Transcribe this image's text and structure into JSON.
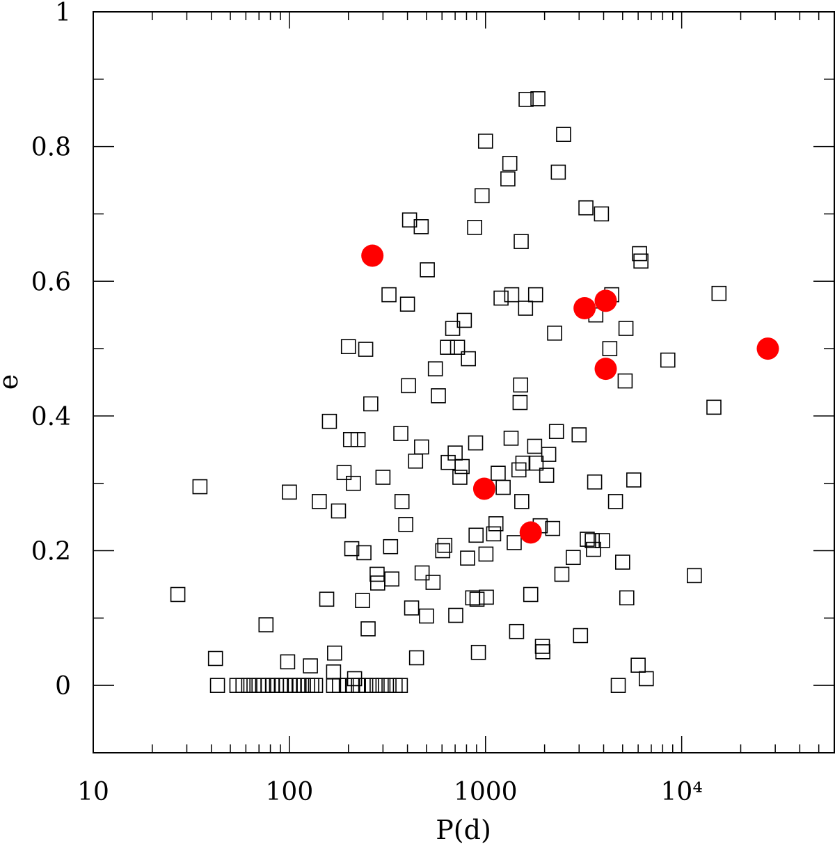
{
  "chart_data": {
    "type": "scatter",
    "title": "",
    "xlabel": "P(d)",
    "ylabel": "e",
    "x_scale": "log",
    "xlim": [
      10,
      60000
    ],
    "ylim": [
      -0.1,
      1.0
    ],
    "grid": false,
    "x_ticks": [
      {
        "value": 10,
        "label": "10"
      },
      {
        "value": 100,
        "label": "100"
      },
      {
        "value": 1000,
        "label": "1000"
      },
      {
        "value": 10000,
        "label": "10⁴"
      }
    ],
    "y_ticks": [
      {
        "value": 0,
        "label": "0"
      },
      {
        "value": 0.2,
        "label": "0.2"
      },
      {
        "value": 0.4,
        "label": "0.4"
      },
      {
        "value": 0.6,
        "label": "0.6"
      },
      {
        "value": 0.8,
        "label": "0.8"
      },
      {
        "value": 1,
        "label": "1"
      }
    ],
    "series": [
      {
        "marker": "open-square",
        "color": "#000000",
        "points": [
          [
            27,
            0.135
          ],
          [
            35,
            0.295
          ],
          [
            42,
            0.04
          ],
          [
            43,
            0
          ],
          [
            54,
            0
          ],
          [
            58,
            0
          ],
          [
            62,
            0
          ],
          [
            66,
            0
          ],
          [
            70,
            0
          ],
          [
            74,
            0
          ],
          [
            78,
            0
          ],
          [
            82,
            0
          ],
          [
            86,
            0
          ],
          [
            91,
            0
          ],
          [
            96,
            0
          ],
          [
            101,
            0
          ],
          [
            106,
            0
          ],
          [
            112,
            0
          ],
          [
            118,
            0
          ],
          [
            124,
            0
          ],
          [
            130,
            0
          ],
          [
            136,
            0
          ],
          [
            168,
            0
          ],
          [
            180,
            0
          ],
          [
            195,
            0
          ],
          [
            210,
            0
          ],
          [
            225,
            0
          ],
          [
            245,
            0
          ],
          [
            262,
            0
          ],
          [
            280,
            0
          ],
          [
            300,
            0
          ],
          [
            322,
            0
          ],
          [
            346,
            0
          ],
          [
            368,
            0
          ],
          [
            76,
            0.09
          ],
          [
            98,
            0.035
          ],
          [
            100,
            0.287
          ],
          [
            128,
            0.029
          ],
          [
            142,
            0.273
          ],
          [
            155,
            0.128
          ],
          [
            160,
            0.392
          ],
          [
            168,
            0.02
          ],
          [
            170,
            0.048
          ],
          [
            178,
            0.259
          ],
          [
            190,
            0.316
          ],
          [
            200,
            0.503
          ],
          [
            205,
            0.365
          ],
          [
            208,
            0.203
          ],
          [
            212,
            0.3
          ],
          [
            215,
            0.01
          ],
          [
            224,
            0.365
          ],
          [
            236,
            0.126
          ],
          [
            240,
            0.197
          ],
          [
            245,
            0.499
          ],
          [
            252,
            0.084
          ],
          [
            260,
            0.418
          ],
          [
            280,
            0.165
          ],
          [
            282,
            0.152
          ],
          [
            300,
            0.309
          ],
          [
            322,
            0.58
          ],
          [
            328,
            0.206
          ],
          [
            333,
            0.158
          ],
          [
            370,
            0.374
          ],
          [
            375,
            0.273
          ],
          [
            392,
            0.239
          ],
          [
            400,
            0.566
          ],
          [
            405,
            0.445
          ],
          [
            410,
            0.691
          ],
          [
            420,
            0.115
          ],
          [
            440,
            0.333
          ],
          [
            445,
            0.041
          ],
          [
            470,
            0.681
          ],
          [
            472,
            0.354
          ],
          [
            475,
            0.167
          ],
          [
            500,
            0.103
          ],
          [
            505,
            0.617
          ],
          [
            540,
            0.153
          ],
          [
            555,
            0.47
          ],
          [
            575,
            0.43
          ],
          [
            605,
            0.2
          ],
          [
            620,
            0.208
          ],
          [
            640,
            0.502
          ],
          [
            645,
            0.331
          ],
          [
            680,
            0.53
          ],
          [
            700,
            0.345
          ],
          [
            705,
            0.104
          ],
          [
            720,
            0.502
          ],
          [
            740,
            0.309
          ],
          [
            760,
            0.325
          ],
          [
            780,
            0.542
          ],
          [
            810,
            0.189
          ],
          [
            818,
            0.485
          ],
          [
            860,
            0.13
          ],
          [
            880,
            0.68
          ],
          [
            890,
            0.36
          ],
          [
            895,
            0.223
          ],
          [
            905,
            0.128
          ],
          [
            920,
            0.049
          ],
          [
            960,
            0.727
          ],
          [
            1000,
            0.808
          ],
          [
            1005,
            0.195
          ],
          [
            1010,
            0.131
          ],
          [
            1100,
            0.225
          ],
          [
            1130,
            0.24
          ],
          [
            1160,
            0.315
          ],
          [
            1200,
            0.575
          ],
          [
            1230,
            0.294
          ],
          [
            1300,
            0.752
          ],
          [
            1330,
            0.775
          ],
          [
            1350,
            0.367
          ],
          [
            1360,
            0.58
          ],
          [
            1400,
            0.212
          ],
          [
            1440,
            0.08
          ],
          [
            1480,
            0.32
          ],
          [
            1500,
            0.42
          ],
          [
            1510,
            0.446
          ],
          [
            1520,
            0.659
          ],
          [
            1530,
            0.273
          ],
          [
            1550,
            0.33
          ],
          [
            1600,
            0.56
          ],
          [
            1610,
            0.87
          ],
          [
            1700,
            0.135
          ],
          [
            1780,
            0.355
          ],
          [
            1800,
            0.58
          ],
          [
            1810,
            0.33
          ],
          [
            1850,
            0.871
          ],
          [
            1900,
            0.237
          ],
          [
            1950,
            0.058
          ],
          [
            1960,
            0.05
          ],
          [
            2050,
            0.312
          ],
          [
            2100,
            0.343
          ],
          [
            2200,
            0.233
          ],
          [
            2250,
            0.523
          ],
          [
            2300,
            0.377
          ],
          [
            2350,
            0.762
          ],
          [
            2450,
            0.165
          ],
          [
            2500,
            0.818
          ],
          [
            2800,
            0.19
          ],
          [
            3000,
            0.372
          ],
          [
            3050,
            0.074
          ],
          [
            3250,
            0.709
          ],
          [
            3300,
            0.217
          ],
          [
            3500,
            0.215
          ],
          [
            3550,
            0.202
          ],
          [
            3600,
            0.302
          ],
          [
            3650,
            0.55
          ],
          [
            3900,
            0.7
          ],
          [
            3950,
            0.215
          ],
          [
            4300,
            0.5
          ],
          [
            4400,
            0.58
          ],
          [
            4600,
            0.273
          ],
          [
            4750,
            0
          ],
          [
            5000,
            0.183
          ],
          [
            5150,
            0.452
          ],
          [
            5200,
            0.53
          ],
          [
            5250,
            0.13
          ],
          [
            5700,
            0.305
          ],
          [
            6000,
            0.03
          ],
          [
            6100,
            0.641
          ],
          [
            6200,
            0.63
          ],
          [
            6600,
            0.01
          ],
          [
            8500,
            0.483
          ],
          [
            11600,
            0.163
          ],
          [
            14600,
            0.413
          ],
          [
            15500,
            0.582
          ]
        ]
      },
      {
        "marker": "filled-circle",
        "color": "#ff0000",
        "points": [
          [
            265,
            0.638
          ],
          [
            985,
            0.292
          ],
          [
            1700,
            0.227
          ],
          [
            3200,
            0.56
          ],
          [
            4100,
            0.571
          ],
          [
            4100,
            0.47
          ],
          [
            27500,
            0.5
          ]
        ]
      }
    ]
  }
}
